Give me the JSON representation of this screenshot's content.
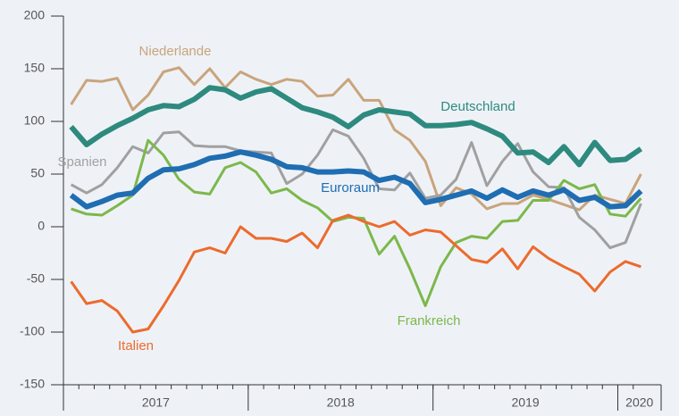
{
  "chart_data": {
    "type": "line",
    "categories": [
      null,
      null,
      null,
      null,
      null,
      null,
      null,
      null,
      null,
      null,
      null,
      null,
      null,
      null,
      null,
      null,
      null,
      null,
      null,
      null,
      null,
      null,
      null,
      null,
      null,
      null,
      null,
      null,
      null,
      null,
      null,
      null,
      null,
      null,
      null,
      null,
      null,
      null
    ],
    "x_group_labels": [
      "2017",
      "2018",
      "2019",
      "2020"
    ],
    "ylim": [
      -150,
      200
    ],
    "yticks": [
      -150,
      -100,
      -50,
      0,
      50,
      100,
      150,
      200
    ],
    "series": [
      {
        "name": "Niederlande",
        "color": "#c9a47c",
        "values": [
          116,
          139,
          138,
          141,
          111,
          125,
          147,
          151,
          135,
          150,
          132,
          147,
          140,
          135,
          140,
          138,
          124,
          125,
          140,
          120,
          120,
          92,
          82,
          62,
          20,
          37,
          31,
          17,
          22,
          22,
          30,
          26,
          21,
          16,
          30,
          26,
          22,
          50
        ]
      },
      {
        "name": "Spanien",
        "color": "#a0a0a0",
        "values": [
          40,
          32,
          40,
          56,
          76,
          70,
          89,
          90,
          77,
          76,
          76,
          72,
          71,
          70,
          41,
          50,
          68,
          92,
          86,
          65,
          36,
          35,
          51,
          27,
          30,
          45,
          80,
          39,
          62,
          79,
          52,
          38,
          37,
          9,
          -3,
          -20,
          -15,
          22
        ]
      },
      {
        "name": "Frankreich",
        "color": "#7cb84a",
        "values": [
          17,
          12,
          11,
          20,
          30,
          82,
          68,
          45,
          33,
          31,
          56,
          61,
          52,
          32,
          36,
          25,
          18,
          5,
          9,
          8,
          -26,
          -9,
          -40,
          -75,
          -38,
          -15,
          -9,
          -11,
          5,
          6,
          25,
          25,
          44,
          36,
          40,
          12,
          10,
          27
        ]
      },
      {
        "name": "Italien",
        "color": "#ec6b2d",
        "values": [
          -52,
          -73,
          -70,
          -80,
          -100,
          -97,
          -75,
          -51,
          -24,
          -20,
          -25,
          0,
          -11,
          -11,
          -14,
          -6,
          -20,
          6,
          11,
          5,
          0,
          5,
          -8,
          -3,
          -5,
          -18,
          -31,
          -34,
          -21,
          -40,
          -19,
          -30,
          -38,
          -45,
          -61,
          -43,
          -33,
          -38
        ]
      },
      {
        "name": "Deutschland",
        "color": "#2e8a7f",
        "values": [
          95,
          78,
          88,
          96,
          103,
          111,
          115,
          114,
          121,
          132,
          130,
          122,
          128,
          131,
          122,
          113,
          109,
          104,
          95,
          106,
          111,
          109,
          107,
          96,
          96,
          97,
          99,
          93,
          86,
          70,
          71,
          61,
          76,
          59,
          80,
          63,
          64,
          74
        ]
      },
      {
        "name": "Euroraum",
        "color": "#1f6db2",
        "values": [
          30,
          19,
          24,
          30,
          32,
          46,
          54,
          55,
          59,
          65,
          67,
          71,
          68,
          64,
          57,
          56,
          52,
          52,
          53,
          52,
          44,
          47,
          41,
          23,
          26,
          30,
          34,
          27,
          35,
          28,
          34,
          30,
          35,
          25,
          28,
          19,
          20,
          34
        ]
      }
    ]
  }
}
